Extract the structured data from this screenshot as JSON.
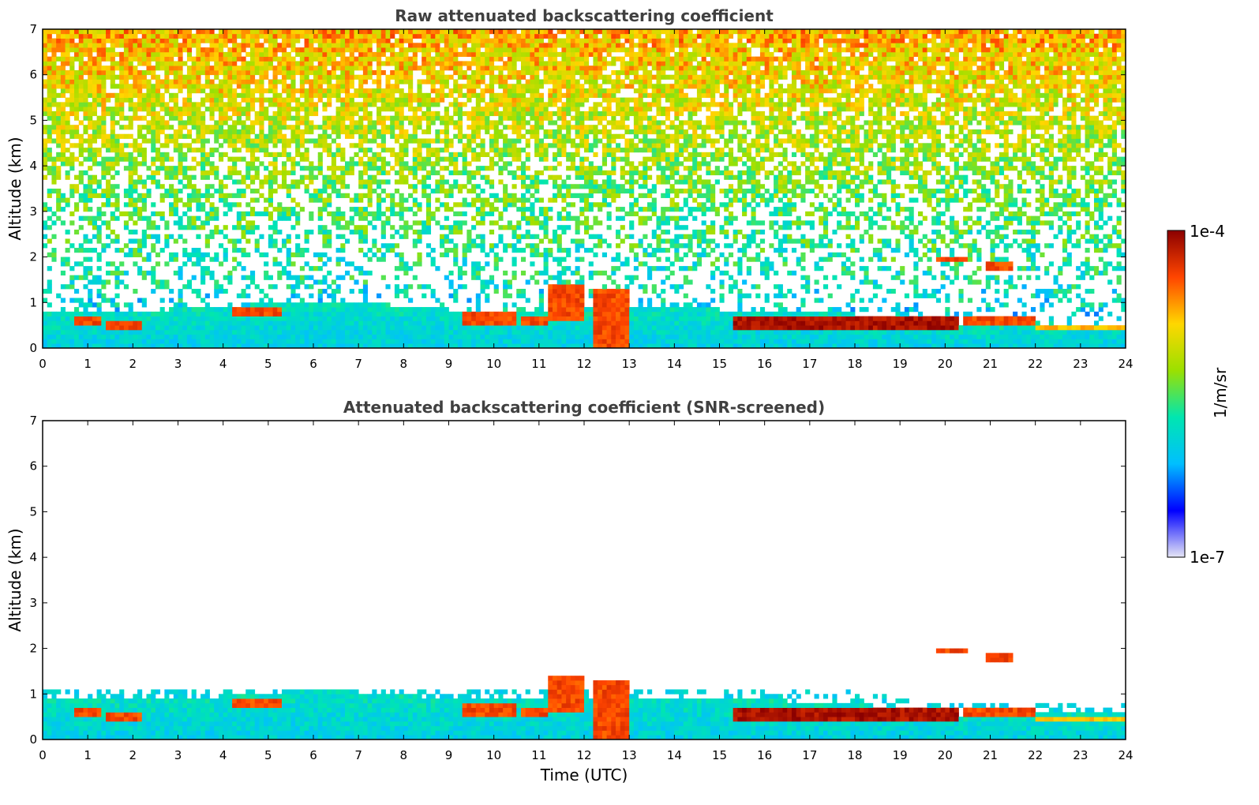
{
  "chart_data": [
    {
      "type": "heatmap",
      "title": "Raw attenuated backscattering coefficient",
      "xlabel": "",
      "ylabel": "Altitude (km)",
      "xlim": [
        0,
        24
      ],
      "ylim": [
        0,
        7
      ],
      "x_ticks": [
        "0",
        "1",
        "2",
        "3",
        "4",
        "5",
        "6",
        "7",
        "8",
        "9",
        "10",
        "11",
        "12",
        "13",
        "14",
        "15",
        "16",
        "17",
        "18",
        "19",
        "20",
        "21",
        "22",
        "23",
        "24"
      ],
      "y_ticks": [
        "0",
        "1",
        "2",
        "3",
        "4",
        "5",
        "6",
        "7"
      ],
      "screened": false,
      "noise_top_km": 7,
      "boundary_layer_top_km": [
        [
          0,
          0.75
        ],
        [
          2,
          0.8
        ],
        [
          4,
          0.9
        ],
        [
          5.3,
          1.0
        ],
        [
          7,
          1.0
        ],
        [
          9,
          0.85
        ],
        [
          12,
          0.8
        ],
        [
          14,
          0.9
        ],
        [
          15,
          0.85
        ],
        [
          18,
          0.75
        ],
        [
          20,
          0.45
        ],
        [
          22,
          0.5
        ],
        [
          24,
          0.55
        ]
      ],
      "features": [
        {
          "name": "aerosol-layer",
          "t0": 0.7,
          "t1": 1.3,
          "alt": 0.6,
          "thick": 0.2,
          "level": "high"
        },
        {
          "name": "aerosol-layer",
          "t0": 1.4,
          "t1": 2.2,
          "alt": 0.5,
          "thick": 0.25,
          "level": "high"
        },
        {
          "name": "aerosol-layer",
          "t0": 4.2,
          "t1": 5.3,
          "alt": 0.8,
          "thick": 0.2,
          "level": "high"
        },
        {
          "name": "aerosol-layer",
          "t0": 9.3,
          "t1": 10.5,
          "alt": 0.7,
          "thick": 0.3,
          "level": "high"
        },
        {
          "name": "aerosol-layer",
          "t0": 10.6,
          "t1": 11.2,
          "alt": 0.6,
          "thick": 0.3,
          "level": "high"
        },
        {
          "name": "convective-plume",
          "t0": 11.2,
          "t1": 12.0,
          "alt": 1.0,
          "thick": 0.8,
          "level": "high"
        },
        {
          "name": "convective-plume",
          "t0": 12.2,
          "t1": 13.0,
          "alt": 0.6,
          "thick": 1.3,
          "level": "high"
        },
        {
          "name": "cloud-base-layer",
          "t0": 15.3,
          "t1": 20.3,
          "alt": 0.55,
          "thick": 0.25,
          "level": "very-high"
        },
        {
          "name": "aerosol-layer",
          "t0": 20.4,
          "t1": 22.0,
          "alt": 0.55,
          "thick": 0.2,
          "level": "high"
        },
        {
          "name": "aerosol-layer",
          "t0": 22.0,
          "t1": 24.0,
          "alt": 0.45,
          "thick": 0.15,
          "level": "medium-high"
        },
        {
          "name": "elevated-layer",
          "t0": 19.8,
          "t1": 20.5,
          "alt": 1.95,
          "thick": 0.12,
          "level": "high"
        },
        {
          "name": "elevated-layer",
          "t0": 20.9,
          "t1": 21.5,
          "alt": 1.8,
          "thick": 0.15,
          "level": "high"
        }
      ]
    },
    {
      "type": "heatmap",
      "title": "Attenuated backscattering coefficient (SNR-screened)",
      "xlabel": "Time (UTC)",
      "ylabel": "Altitude (km)",
      "xlim": [
        0,
        24
      ],
      "ylim": [
        0,
        7
      ],
      "x_ticks": [
        "0",
        "1",
        "2",
        "3",
        "4",
        "5",
        "6",
        "7",
        "8",
        "9",
        "10",
        "11",
        "12",
        "13",
        "14",
        "15",
        "16",
        "17",
        "18",
        "19",
        "20",
        "21",
        "22",
        "23",
        "24"
      ],
      "y_ticks": [
        "0",
        "1",
        "2",
        "3",
        "4",
        "5",
        "6",
        "7"
      ],
      "screened": true,
      "noise_top_km": 1.1,
      "boundary_layer_top_km": [
        [
          0,
          0.85
        ],
        [
          2,
          0.9
        ],
        [
          4,
          0.95
        ],
        [
          5.3,
          1.05
        ],
        [
          7,
          1.05
        ],
        [
          9,
          0.9
        ],
        [
          12,
          0.85
        ],
        [
          14,
          0.95
        ],
        [
          15,
          0.9
        ],
        [
          18,
          0.8
        ],
        [
          20,
          0.5
        ],
        [
          22,
          0.55
        ],
        [
          24,
          0.6
        ]
      ],
      "features": "same-as-raw"
    }
  ],
  "colorbar": {
    "max_label": "1e-4",
    "min_label": "1e-7",
    "label": "1/m/sr",
    "stops": [
      "#e6e6f5",
      "#0000ff",
      "#00bfff",
      "#00e6b0",
      "#9be000",
      "#ffd700",
      "#ff4500",
      "#8b0000"
    ]
  }
}
